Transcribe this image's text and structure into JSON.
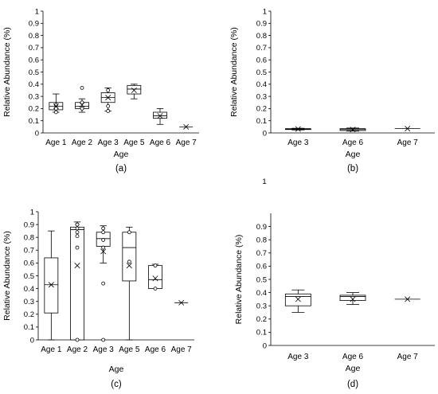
{
  "chart_data": [
    {
      "type": "box",
      "panel_label": "(a)",
      "xlabel": "Age",
      "ylabel": "Relative Abundance (%)",
      "ylim": [
        0,
        1
      ],
      "y_ticks": [
        "0",
        "0.1",
        "0.2",
        "0.3",
        "0.4",
        "0.5",
        "0.6",
        "0.7",
        "0.8",
        "0.9",
        "1"
      ],
      "categories": [
        "Age 1",
        "Age 2",
        "Age 3",
        "Age 5",
        "Age 6",
        "Age 7"
      ],
      "boxes": [
        {
          "min": 0.17,
          "q1": 0.19,
          "median": 0.22,
          "q3": 0.25,
          "max": 0.32,
          "mean": 0.22,
          "outliers": [
            0.17,
            0.2,
            0.23
          ]
        },
        {
          "min": 0.17,
          "q1": 0.2,
          "median": 0.22,
          "q3": 0.25,
          "max": 0.28,
          "mean": 0.23,
          "outliers": [
            0.37,
            0.2,
            0.25
          ]
        },
        {
          "min": 0.18,
          "q1": 0.25,
          "median": 0.29,
          "q3": 0.33,
          "max": 0.37,
          "mean": 0.29,
          "outliers": [
            0.18,
            0.22,
            0.35
          ]
        },
        {
          "min": 0.28,
          "q1": 0.32,
          "median": 0.36,
          "q3": 0.39,
          "max": 0.4,
          "mean": 0.35,
          "outliers": []
        },
        {
          "min": 0.07,
          "q1": 0.12,
          "median": 0.14,
          "q3": 0.17,
          "max": 0.2,
          "mean": 0.14,
          "outliers": []
        },
        {
          "min": 0.05,
          "q1": 0.05,
          "median": 0.05,
          "q3": 0.05,
          "max": 0.05,
          "mean": 0.05,
          "outliers": []
        }
      ]
    },
    {
      "type": "box",
      "panel_label": "(b)",
      "xlabel": "Age",
      "ylabel": "Relative Abundance (%)",
      "ylim": [
        0,
        1
      ],
      "y_ticks": [
        "0",
        "0.1",
        "0.2",
        "0.3",
        "0.4",
        "0.5",
        "0.6",
        "0.7",
        "0.8",
        "0.9",
        "1"
      ],
      "categories": [
        "Age 3",
        "Age 6",
        "Age 7"
      ],
      "boxes": [
        {
          "min": 0.025,
          "q1": 0.028,
          "median": 0.032,
          "q3": 0.035,
          "max": 0.038,
          "mean": 0.032,
          "outliers": []
        },
        {
          "min": 0.015,
          "q1": 0.02,
          "median": 0.028,
          "q3": 0.035,
          "max": 0.04,
          "mean": 0.028,
          "outliers": []
        },
        {
          "min": 0.035,
          "q1": 0.035,
          "median": 0.035,
          "q3": 0.035,
          "max": 0.035,
          "mean": 0.035,
          "outliers": []
        }
      ]
    },
    {
      "type": "box",
      "panel_label": "(c)",
      "xlabel": "Age",
      "ylabel": "Relative Abundance (%)",
      "ylim": [
        0,
        1
      ],
      "y_ticks": [
        "0",
        "0.1",
        "0.2",
        "0.3",
        "0.4",
        "0.5",
        "0.6",
        "0.7",
        "0.8",
        "0.9",
        "1"
      ],
      "categories": [
        "Age 1",
        "Age 2",
        "Age 3",
        "Age 5",
        "Age 6",
        "Age 7"
      ],
      "boxes": [
        {
          "min": 0,
          "q1": 0.21,
          "median": 0.43,
          "q3": 0.64,
          "max": 0.85,
          "mean": 0.43,
          "outliers": []
        },
        {
          "min": 0,
          "q1": 0,
          "median": 0.86,
          "q3": 0.88,
          "max": 0.92,
          "mean": 0.58,
          "outliers": [
            0.9,
            0.87,
            0.84,
            0.81,
            0.72,
            0,
            0.9
          ]
        },
        {
          "min": 0.6,
          "q1": 0.73,
          "median": 0.79,
          "q3": 0.84,
          "max": 0.89,
          "mean": 0.69,
          "outliers": [
            0.87,
            0.84,
            0.78,
            0.72,
            0.44,
            0
          ]
        },
        {
          "min": 0,
          "q1": 0.46,
          "median": 0.72,
          "q3": 0.84,
          "max": 0.88,
          "mean": 0.58,
          "outliers": [
            0.84,
            0.61
          ]
        },
        {
          "min": 0.4,
          "q1": 0.4,
          "median": 0.47,
          "q3": 0.58,
          "max": 0.59,
          "mean": 0.48,
          "outliers": [
            0.58,
            0.4
          ]
        },
        {
          "min": 0.29,
          "q1": 0.29,
          "median": 0.29,
          "q3": 0.29,
          "max": 0.29,
          "mean": 0.29,
          "outliers": []
        }
      ]
    },
    {
      "type": "box",
      "panel_label": "(d)",
      "xlabel": "Age",
      "ylabel": "Relative Abundance (%)",
      "ylim": [
        0,
        1
      ],
      "y_ticks": [
        "0",
        "0.1",
        "0.2",
        "0.3",
        "0.4",
        "0.5",
        "0.6",
        "0.7",
        "0.8",
        "0.9",
        "1"
      ],
      "categories": [
        "Age 3",
        "Age 6",
        "Age 7"
      ],
      "boxes": [
        {
          "min": 0.25,
          "q1": 0.3,
          "median": 0.37,
          "q3": 0.39,
          "max": 0.42,
          "mean": 0.35,
          "outliers": []
        },
        {
          "min": 0.31,
          "q1": 0.34,
          "median": 0.37,
          "q3": 0.38,
          "max": 0.4,
          "mean": 0.35,
          "outliers": []
        },
        {
          "min": 0.35,
          "q1": 0.35,
          "median": 0.35,
          "q3": 0.35,
          "max": 0.35,
          "mean": 0.35,
          "outliers": []
        }
      ]
    }
  ]
}
